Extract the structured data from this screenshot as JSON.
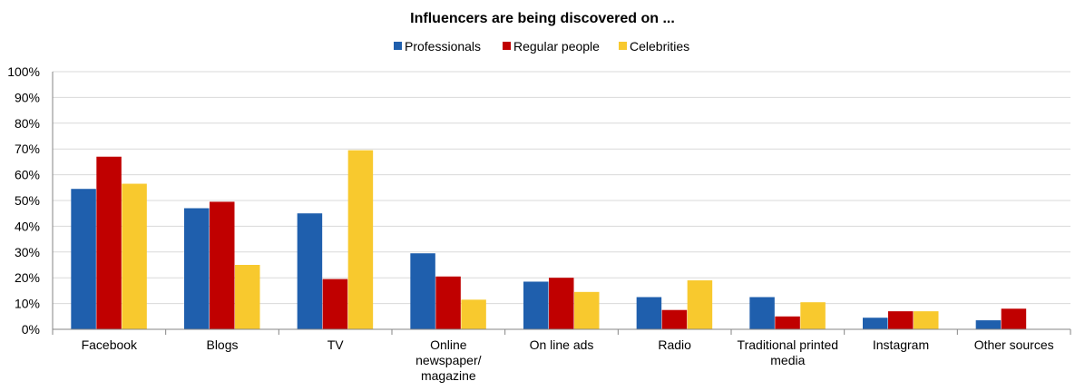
{
  "chart_data": {
    "type": "bar",
    "title": "Influencers are being discovered on ...",
    "categories": [
      [
        "Facebook"
      ],
      [
        "Blogs"
      ],
      [
        "TV"
      ],
      [
        "Online",
        "newspaper/",
        "magazine"
      ],
      [
        "On line ads"
      ],
      [
        "Radio"
      ],
      [
        "Traditional printed",
        "media"
      ],
      [
        "Instagram"
      ],
      [
        "Other sources"
      ]
    ],
    "series": [
      {
        "name": "Professionals",
        "color": "#1f5fad",
        "values": [
          54.5,
          47,
          45,
          29.5,
          18.5,
          12.5,
          12.5,
          4.5,
          3.5
        ]
      },
      {
        "name": "Regular people",
        "color": "#c00000",
        "values": [
          67,
          49.5,
          19.5,
          20.5,
          20,
          7.5,
          5,
          7,
          8
        ]
      },
      {
        "name": "Celebrities",
        "color": "#f8c92e",
        "values": [
          56.5,
          25,
          69.5,
          11.5,
          14.5,
          19,
          10.5,
          7,
          0
        ]
      }
    ],
    "ylim": [
      0,
      100
    ],
    "yticks": [
      "0%",
      "10%",
      "20%",
      "30%",
      "40%",
      "50%",
      "60%",
      "70%",
      "80%",
      "90%",
      "100%"
    ],
    "grid": true,
    "legend": "top"
  }
}
